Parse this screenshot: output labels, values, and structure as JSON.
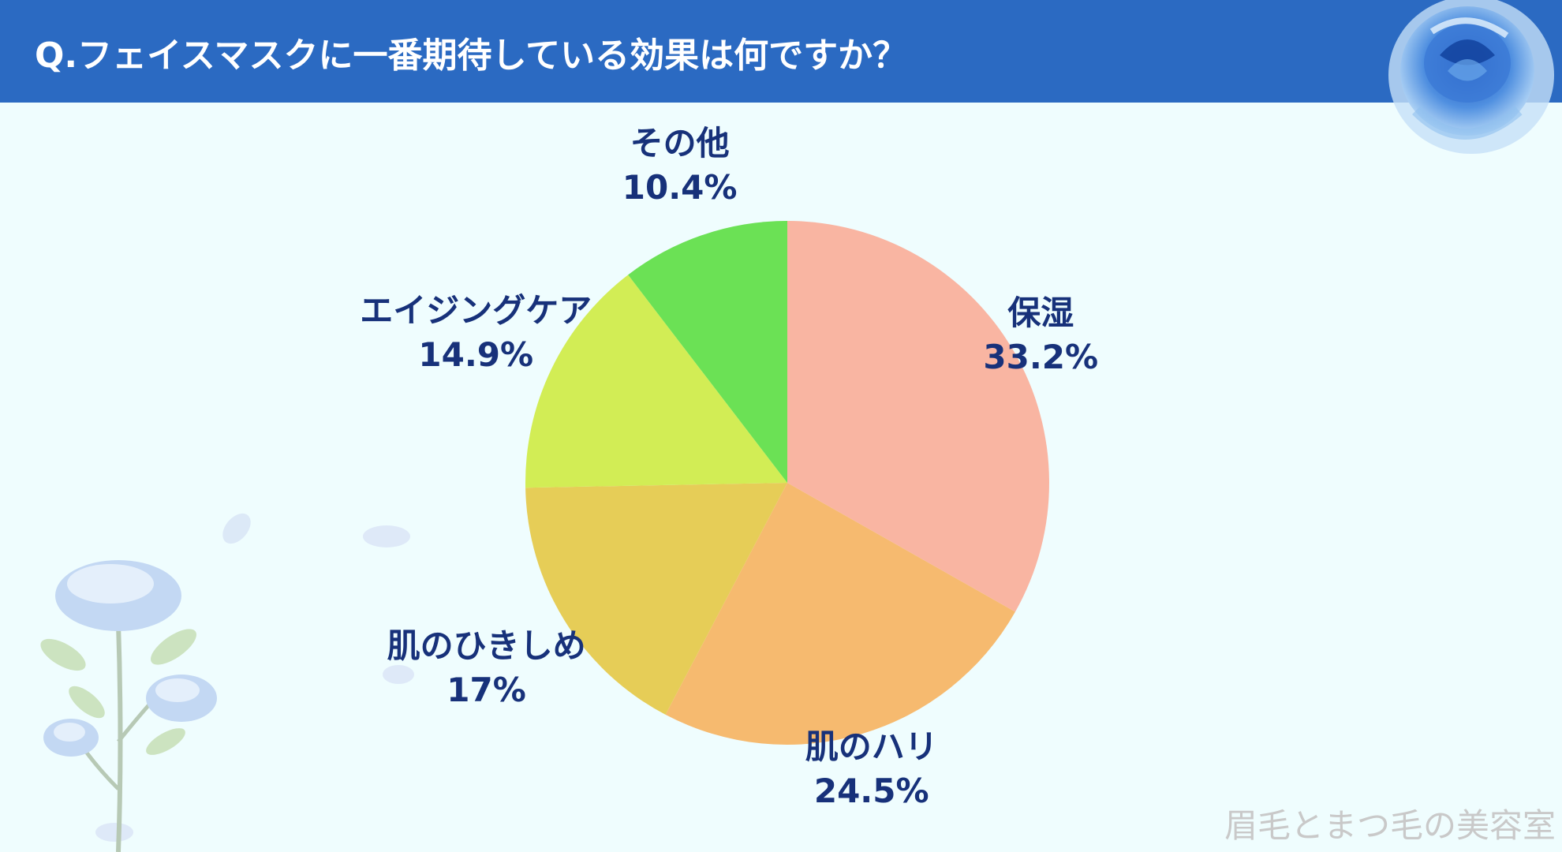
{
  "header": {
    "title": "Q.フェイスマスクに一番期待している効果は何ですか？"
  },
  "watermark": "眉毛とまつ毛の美容室",
  "colors": {
    "header_bg": "#2b6ac2",
    "background": "#effdfe",
    "label_text": "#17317a"
  },
  "chart_data": {
    "type": "pie",
    "categories": [
      "保湿",
      "肌のハリ",
      "肌のひきしめ",
      "エイジングケア",
      "その他"
    ],
    "values": [
      33.2,
      24.5,
      17,
      14.9,
      10.4
    ],
    "value_labels": [
      "33.2%",
      "24.5%",
      "17%",
      "14.9%",
      "10.4%"
    ],
    "colors": [
      "#f9b5a2",
      "#f6ba6f",
      "#e6cd57",
      "#d2ed55",
      "#6be155"
    ],
    "start": "12 o'clock",
    "direction": "clockwise",
    "legend": "none",
    "labels_position": "outside"
  }
}
